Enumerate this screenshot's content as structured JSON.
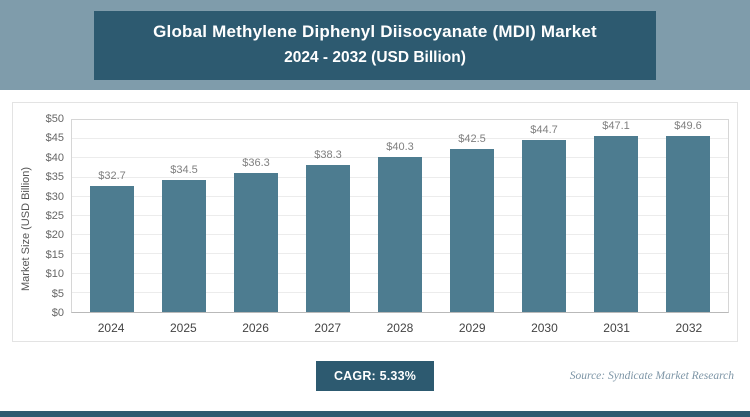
{
  "header": {
    "title_line1": "Global Methylene Diphenyl Diisocyanate (MDI) Market",
    "title_line2": "2024 - 2032 (USD Billion)"
  },
  "chart_data": {
    "type": "bar",
    "title": "Global Methylene Diphenyl Diisocyanate (MDI) Market 2024 - 2032 (USD Billion)",
    "categories": [
      "2024",
      "2025",
      "2026",
      "2027",
      "2028",
      "2029",
      "2030",
      "2031",
      "2032"
    ],
    "values": [
      32.7,
      34.5,
      36.3,
      38.3,
      40.3,
      42.5,
      44.7,
      47.1,
      49.6
    ],
    "value_labels": [
      "$32.7",
      "$34.5",
      "$36.3",
      "$38.3",
      "$40.3",
      "$42.5",
      "$44.7",
      "$47.1",
      "$49.6"
    ],
    "xlabel": "",
    "ylabel": "Market Size (USD Billion)",
    "ylim": [
      0,
      50
    ],
    "ytick_step": 5,
    "ytick_labels": [
      "$0",
      "$5",
      "$10",
      "$15",
      "$20",
      "$25",
      "$30",
      "$35",
      "$40",
      "$45",
      "$50"
    ],
    "grid": true,
    "legend": "none"
  },
  "footer": {
    "cagr_label": "CAGR: 5.33%",
    "source": "Source: Syndicate Market Research"
  },
  "colors": {
    "header_band": "#7f9cab",
    "panel": "#2d5a70",
    "bar": "#4d7c90",
    "grid": "#ececec",
    "source_text": "#7d95a6"
  }
}
